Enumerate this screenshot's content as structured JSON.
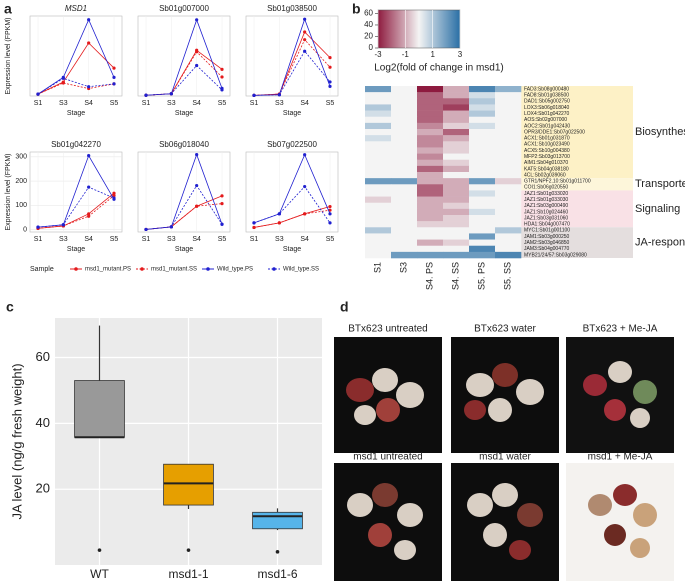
{
  "panel_labels": [
    "a",
    "b",
    "c",
    "d"
  ],
  "photos": {
    "captions": [
      "BTx623 untreated",
      "BTx623 water",
      "BTx623 + Me-JA",
      "msd1 untreated",
      "msd1 water",
      "msd1 + Me-JA"
    ]
  },
  "chart_data": [
    {
      "type": "line",
      "title": "MSD1",
      "title_style": "italic",
      "xlabel": "Stage",
      "ylabel": "Expression level (FPKM)",
      "categories": [
        "S1",
        "S3",
        "S4",
        "S5"
      ],
      "ylim": [
        0,
        8.6
      ],
      "legend_title": "Sample",
      "legend": "bottom",
      "series": [
        {
          "name": "msd1_mutant.PS",
          "color": "#e41a1c",
          "linestyle": "solid",
          "values": [
            0.2,
            1.5,
            5.7,
            3.0
          ]
        },
        {
          "name": "msd1_mutant.SS",
          "color": "#e41a1c",
          "linestyle": "dashed",
          "values": [
            0.2,
            1.4,
            0.8,
            1.3
          ]
        },
        {
          "name": "Wild_type.PS",
          "color": "#2020d0",
          "linestyle": "solid",
          "values": [
            0.2,
            2.0,
            8.2,
            2.0
          ]
        },
        {
          "name": "Wild_type.SS",
          "color": "#2020d0",
          "linestyle": "dashed",
          "values": [
            0.2,
            1.9,
            1.0,
            1.3
          ]
        }
      ]
    },
    {
      "type": "line",
      "title": "Sb01g007000",
      "xlabel": "Stage",
      "categories": [
        "S1",
        "S3",
        "S4",
        "S5"
      ],
      "ylim": [
        0,
        105
      ],
      "series": [
        {
          "name": "msd1_mutant.PS",
          "color": "#e41a1c",
          "linestyle": "solid",
          "values": [
            1,
            3,
            60,
            35
          ]
        },
        {
          "name": "msd1_mutant.SS",
          "color": "#e41a1c",
          "linestyle": "dashed",
          "values": [
            1,
            3,
            58,
            25
          ]
        },
        {
          "name": "Wild_type.PS",
          "color": "#2020d0",
          "linestyle": "solid",
          "values": [
            1,
            3,
            100,
            10
          ]
        },
        {
          "name": "Wild_type.SS",
          "color": "#2020d0",
          "linestyle": "dashed",
          "values": [
            1,
            3,
            40,
            8
          ]
        }
      ]
    },
    {
      "type": "line",
      "title": "Sb01g038500",
      "xlabel": "Stage",
      "categories": [
        "S1",
        "S3",
        "S4",
        "S5"
      ],
      "ylim": [
        0,
        125
      ],
      "series": [
        {
          "name": "msd1_mutant.PS",
          "color": "#e41a1c",
          "linestyle": "solid",
          "values": [
            1,
            3,
            100,
            60
          ]
        },
        {
          "name": "msd1_mutant.SS",
          "color": "#e41a1c",
          "linestyle": "dashed",
          "values": [
            1,
            3,
            88,
            45
          ]
        },
        {
          "name": "Wild_type.PS",
          "color": "#2020d0",
          "linestyle": "solid",
          "values": [
            1,
            2,
            120,
            15
          ]
        },
        {
          "name": "Wild_type.SS",
          "color": "#2020d0",
          "linestyle": "dashed",
          "values": [
            1,
            2,
            70,
            22
          ]
        }
      ]
    },
    {
      "type": "line",
      "title": "Sb01g042270",
      "xlabel": "Stage",
      "ylabel": "Expression level (FPKM)",
      "categories": [
        "S1",
        "S3",
        "S4",
        "S5"
      ],
      "ylim": [
        -10,
        320
      ],
      "yticks": [
        0,
        100,
        200,
        300
      ],
      "series": [
        {
          "name": "msd1_mutant.PS",
          "color": "#e41a1c",
          "linestyle": "solid",
          "values": [
            5,
            15,
            65,
            150
          ]
        },
        {
          "name": "msd1_mutant.SS",
          "color": "#e41a1c",
          "linestyle": "dashed",
          "values": [
            5,
            15,
            55,
            140
          ]
        },
        {
          "name": "Wild_type.PS",
          "color": "#2020d0",
          "linestyle": "solid",
          "values": [
            10,
            20,
            305,
            125
          ]
        },
        {
          "name": "Wild_type.SS",
          "color": "#2020d0",
          "linestyle": "dashed",
          "values": [
            10,
            20,
            175,
            130
          ]
        }
      ]
    },
    {
      "type": "line",
      "title": "Sb06g018040",
      "xlabel": "Stage",
      "categories": [
        "S1",
        "S3",
        "S4",
        "S5"
      ],
      "ylim": [
        0,
        31
      ],
      "series": [
        {
          "name": "msd1_mutant.PS",
          "color": "#e41a1c",
          "linestyle": "solid",
          "values": [
            1,
            2,
            10,
            14
          ]
        },
        {
          "name": "msd1_mutant.SS",
          "color": "#e41a1c",
          "linestyle": "dashed",
          "values": [
            1,
            2,
            10,
            11
          ]
        },
        {
          "name": "Wild_type.PS",
          "color": "#2020d0",
          "linestyle": "solid",
          "values": [
            1,
            2,
            30,
            3
          ]
        },
        {
          "name": "Wild_type.SS",
          "color": "#2020d0",
          "linestyle": "dashed",
          "values": [
            1,
            2,
            18,
            3
          ]
        }
      ]
    },
    {
      "type": "line",
      "title": "Sb07g022500",
      "xlabel": "Stage",
      "categories": [
        "S1",
        "S3",
        "S4",
        "S5"
      ],
      "ylim": [
        0,
        88
      ],
      "series": [
        {
          "name": "msd1_mutant.PS",
          "color": "#e41a1c",
          "linestyle": "solid",
          "values": [
            5,
            10,
            20,
            28
          ]
        },
        {
          "name": "msd1_mutant.SS",
          "color": "#e41a1c",
          "linestyle": "dashed",
          "values": [
            5,
            10,
            20,
            24
          ]
        },
        {
          "name": "Wild_type.PS",
          "color": "#2020d0",
          "linestyle": "solid",
          "values": [
            10,
            20,
            85,
            20
          ]
        },
        {
          "name": "Wild_type.SS",
          "color": "#2020d0",
          "linestyle": "dashed",
          "values": [
            10,
            20,
            50,
            10
          ]
        }
      ]
    },
    {
      "type": "heatmap",
      "zlim": [
        -3,
        3
      ],
      "colors": [
        "#8e1b3f",
        "#f4f4f4",
        "#2a6fa5"
      ],
      "columns": [
        "S1",
        "S3",
        "S4. PS",
        "S4. SS",
        "S5. PS",
        "S5. SS"
      ],
      "colorbar": {
        "ticks": [
          -3,
          -1,
          1,
          3
        ],
        "hist_ylim": [
          0,
          66
        ],
        "hist_ticks": [
          0,
          20,
          40,
          60
        ],
        "label": "Log2(fold of change in msd1)"
      },
      "groups": [
        {
          "name": "Biosynthesis",
          "color": "#fdf1c6",
          "rows": [
            {
              "label": "FAD3:Sb08g000480",
              "values": [
                2,
                0,
                -3,
                -1,
                2.5,
                1.5
              ]
            },
            {
              "label": "FAD8:Sb01g038500",
              "values": [
                0,
                0,
                -2,
                -1,
                0.5,
                0
              ]
            },
            {
              "label": "DAD1:Sb05g002750",
              "values": [
                0,
                0,
                -2,
                -2,
                1,
                0
              ]
            },
            {
              "label": "LOX3:Sb06g018040",
              "values": [
                1,
                0,
                -2,
                -2.5,
                0.5,
                0
              ]
            },
            {
              "label": "LOX4:Sb01g042270",
              "values": [
                0.5,
                0,
                -2,
                -1,
                1,
                0
              ]
            },
            {
              "label": "AOS:Sb02g007000",
              "values": [
                0,
                0,
                -2,
                -1,
                0,
                0
              ]
            },
            {
              "label": "AOC2:Sb01g042430",
              "values": [
                1,
                0,
                -1.5,
                -0.5,
                0.5,
                0
              ]
            },
            {
              "label": "OPR3/DDE1:Sb07g022500",
              "values": [
                0,
                0,
                -1,
                -2,
                0,
                0
              ]
            },
            {
              "label": "ACX1:Sb01g031870",
              "values": [
                0.5,
                0,
                -1.5,
                -1,
                0,
                0
              ]
            },
            {
              "label": "ACX1:Sb10g023490",
              "values": [
                0,
                0,
                -1.5,
                -0.5,
                0,
                0
              ]
            },
            {
              "label": "ACX5:Sb10g004380",
              "values": [
                0,
                0,
                -1,
                -0.5,
                0,
                0
              ]
            },
            {
              "label": "MFP2:Sb03g013700",
              "values": [
                0,
                0,
                -1.5,
                0,
                0,
                0
              ]
            },
            {
              "label": "AIM1:Sb04g010370",
              "values": [
                0,
                0,
                -1,
                -0.5,
                0,
                0
              ]
            },
            {
              "label": "KAT5:Sb04g038180",
              "values": [
                0,
                0,
                -2,
                -1,
                0,
                0
              ]
            },
            {
              "label": "4CL:Sb02g039060",
              "values": [
                0,
                0,
                -1,
                0,
                0,
                0
              ]
            }
          ]
        },
        {
          "name": "Transporter",
          "color": "#fdf6da",
          "rows": [
            {
              "label": "GTR1/NPF2.10:Sb01g011700",
              "values": [
                2,
                2,
                -1,
                -1,
                2,
                -0.5
              ]
            },
            {
              "label": "COI1:Sb06g020550",
              "values": [
                0,
                0,
                -2,
                -1,
                0,
                0
              ]
            }
          ]
        },
        {
          "name": "Signaling",
          "color": "#f9e1e6",
          "rows": [
            {
              "label": "JAZ1:Sb01g033020",
              "values": [
                0,
                0,
                -2,
                -1,
                0.5,
                0
              ]
            },
            {
              "label": "JAZ1:Sb01g033030",
              "values": [
                -0.5,
                0,
                -1,
                -1,
                0,
                0
              ]
            },
            {
              "label": "JAZ1:Sb03g000490",
              "values": [
                0,
                0,
                -1,
                -0.5,
                0,
                0
              ]
            },
            {
              "label": "JAZ1:Sb10g024460",
              "values": [
                0,
                0,
                -1,
                -1,
                0.5,
                0
              ]
            },
            {
              "label": "JAZ1:Sb03g031060",
              "values": [
                0,
                0,
                -1,
                -0.5,
                0,
                0
              ]
            },
            {
              "label": "HDA1:Sb04g007470",
              "values": [
                0,
                0,
                -0.5,
                -0.5,
                0,
                0
              ]
            }
          ]
        },
        {
          "name": "JA-responsive",
          "color": "#e4dede",
          "rows": [
            {
              "label": "MYC1:Sb01g001100",
              "values": [
                1,
                0,
                0,
                0,
                0,
                1
              ]
            },
            {
              "label": "JAM1:Sb03g000250",
              "values": [
                0,
                0,
                0,
                0,
                2,
                0
              ]
            },
            {
              "label": "JAM2:Sb03g046850",
              "values": [
                0,
                0,
                -1,
                -0.5,
                0,
                0
              ]
            },
            {
              "label": "JAM3:Sb04g004770",
              "values": [
                0,
                0,
                0,
                0,
                2.5,
                0
              ]
            },
            {
              "label": "MYB21/24/57:Sb03g029080",
              "values": [
                0,
                2,
                2,
                2,
                2,
                2.5
              ]
            }
          ]
        }
      ]
    },
    {
      "type": "box",
      "ylabel": "JA level (ng/g fresh weight)",
      "ylim": [
        -3,
        72
      ],
      "yticks": [
        20,
        40,
        60
      ],
      "grid": true,
      "categories": [
        "WT",
        "msd1-1",
        "msd1-6"
      ],
      "colors": [
        "#999999",
        "#e69f00",
        "#56b4e9"
      ],
      "stats": [
        {
          "q1": 35.8,
          "median": 35.8,
          "q3": 53,
          "whisker_high": 69.7,
          "outliers": [
            1.5
          ]
        },
        {
          "whisker_low": 14,
          "q1": 15.2,
          "median": 21.8,
          "q3": 27.6,
          "outliers": [
            1.5
          ]
        },
        {
          "whisker_low": 7.6,
          "q1": 8,
          "median": 11.8,
          "q3": 13,
          "whisker_high": 14.2,
          "outliers": [
            1
          ]
        }
      ]
    }
  ]
}
